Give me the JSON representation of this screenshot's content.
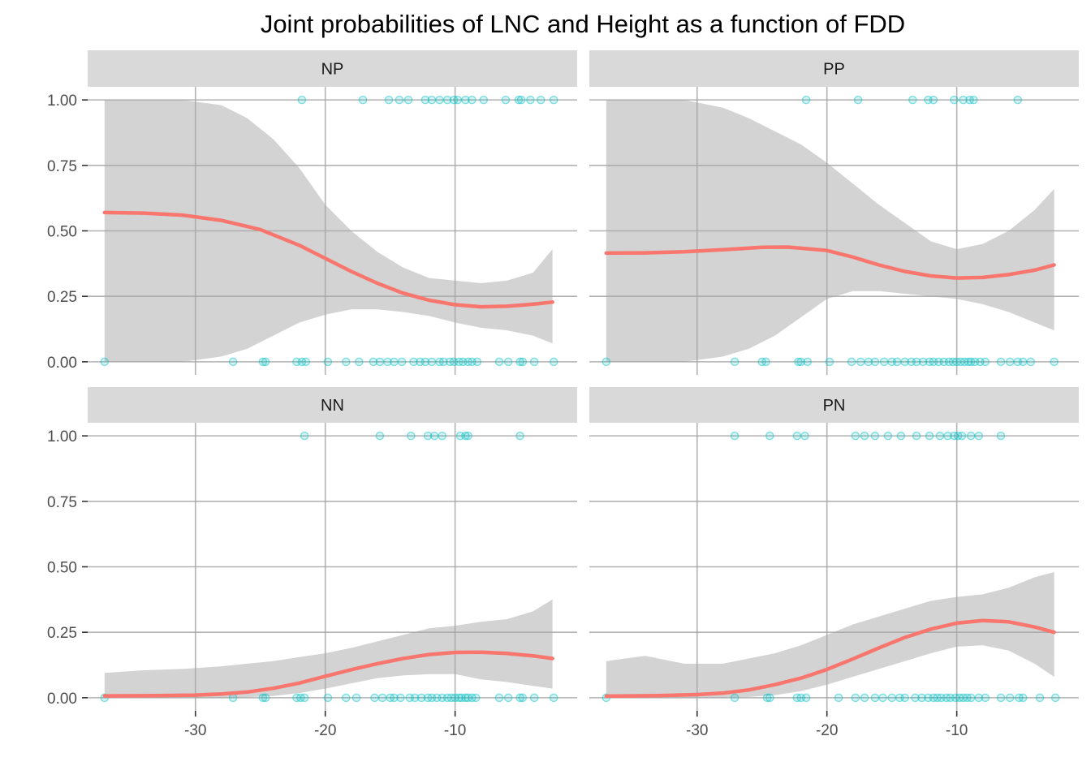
{
  "chart_data": {
    "type": "line",
    "title": "Joint probabilities of LNC and Height as a function of FDD",
    "xlabel": "",
    "ylabel": "",
    "xlim": [
      -38.3,
      -0.6
    ],
    "ylim": [
      -0.05,
      1.05
    ],
    "x_ticks": [
      -30,
      -20,
      -10
    ],
    "x_tick_labels": [
      "-30",
      "-20",
      "-10"
    ],
    "y_ticks": [
      0,
      0.25,
      0.5,
      0.75,
      1.0
    ],
    "y_tick_labels": [
      "0.00",
      "0.25",
      "0.50",
      "0.75",
      "1.00"
    ],
    "grid": true,
    "colors": {
      "line": "#F8766D",
      "ribbon": "#d3d3d3",
      "points": "#00BFC4",
      "strip": "#d9d9d9",
      "grid": "#a6a6a6"
    },
    "panels": [
      {
        "label": "NP",
        "line": {
          "x": [
            -37,
            -34,
            -31,
            -28,
            -25,
            -22,
            -20,
            -18,
            -16,
            -14,
            -12,
            -10,
            -8,
            -6,
            -4,
            -2.5
          ],
          "y": [
            0.57,
            0.568,
            0.56,
            0.54,
            0.505,
            0.445,
            0.395,
            0.345,
            0.3,
            0.262,
            0.235,
            0.218,
            0.21,
            0.212,
            0.22,
            0.228
          ]
        },
        "ribbon": {
          "x": [
            -37,
            -34,
            -31,
            -28,
            -26,
            -24,
            -22,
            -20,
            -18,
            -16,
            -14,
            -12,
            -10,
            -8,
            -6,
            -4,
            -2.5
          ],
          "upper": [
            1.0,
            1.0,
            1.0,
            0.98,
            0.93,
            0.85,
            0.74,
            0.6,
            0.5,
            0.42,
            0.36,
            0.32,
            0.31,
            0.3,
            0.31,
            0.34,
            0.43
          ],
          "lower": [
            0.0,
            0.0,
            0.0,
            0.02,
            0.05,
            0.1,
            0.15,
            0.18,
            0.2,
            0.2,
            0.19,
            0.175,
            0.15,
            0.13,
            0.12,
            0.1,
            0.07
          ]
        },
        "points_top": [
          -21.8,
          -17.1,
          -15.1,
          -14.3,
          -13.6,
          -12.3,
          -11.8,
          -11.2,
          -10.6,
          -10.1,
          -9.8,
          -9.2,
          -8.7,
          -7.8,
          -6.1,
          -5.1,
          -4.9,
          -4.2,
          -3.4,
          -2.4
        ],
        "points_bottom": [
          -37,
          -27.1,
          -24.8,
          -24.6,
          -22.2,
          -21.8,
          -21.5,
          -19.8,
          -18.4,
          -17.4,
          -16.3,
          -15.8,
          -15.2,
          -14.7,
          -14.1,
          -13.2,
          -12.7,
          -12.3,
          -11.8,
          -11.2,
          -10.9,
          -10.4,
          -10.1,
          -9.7,
          -9.4,
          -9.0,
          -8.7,
          -8.3,
          -6.6,
          -5.9,
          -5.0,
          -4.8,
          -3.9,
          -2.4
        ]
      },
      {
        "label": "PP",
        "line": {
          "x": [
            -37,
            -34,
            -31,
            -28,
            -25,
            -23,
            -20,
            -18,
            -16,
            -14,
            -12,
            -10,
            -8,
            -6,
            -4,
            -2.5
          ],
          "y": [
            0.415,
            0.416,
            0.42,
            0.428,
            0.437,
            0.438,
            0.425,
            0.4,
            0.37,
            0.345,
            0.328,
            0.32,
            0.322,
            0.333,
            0.35,
            0.37
          ]
        },
        "ribbon": {
          "x": [
            -37,
            -34,
            -31,
            -28,
            -26,
            -24,
            -22,
            -20,
            -18,
            -16,
            -14,
            -12,
            -10,
            -8,
            -6,
            -4,
            -2.5
          ],
          "upper": [
            1.0,
            1.0,
            1.0,
            0.97,
            0.93,
            0.88,
            0.83,
            0.76,
            0.68,
            0.6,
            0.53,
            0.46,
            0.43,
            0.45,
            0.5,
            0.58,
            0.66
          ],
          "lower": [
            0.0,
            0.0,
            0.0,
            0.02,
            0.05,
            0.1,
            0.17,
            0.24,
            0.27,
            0.27,
            0.26,
            0.25,
            0.24,
            0.22,
            0.19,
            0.15,
            0.12
          ]
        },
        "points_top": [
          -21.6,
          -17.6,
          -13.4,
          -12.2,
          -11.8,
          -10.2,
          -9.5,
          -9.0,
          -8.7,
          -5.3
        ],
        "points_bottom": [
          -37,
          -27.1,
          -25.0,
          -24.7,
          -22.2,
          -22.0,
          -21.5,
          -19.8,
          -18.1,
          -17.4,
          -16.8,
          -16.3,
          -15.6,
          -15.0,
          -14.6,
          -14.0,
          -13.5,
          -13.1,
          -12.6,
          -12.1,
          -11.8,
          -11.4,
          -11.0,
          -10.6,
          -10.3,
          -10.0,
          -9.7,
          -9.4,
          -9.1,
          -8.9,
          -8.6,
          -8.2,
          -7.8,
          -6.6,
          -5.9,
          -5.3,
          -4.9,
          -4.3,
          -2.5
        ]
      },
      {
        "label": "NN",
        "line": {
          "x": [
            -37,
            -33,
            -30,
            -28,
            -26,
            -24,
            -22,
            -20,
            -18,
            -16,
            -14,
            -12,
            -10,
            -8,
            -6,
            -4,
            -2.5
          ],
          "y": [
            0.007,
            0.008,
            0.01,
            0.014,
            0.022,
            0.036,
            0.056,
            0.082,
            0.107,
            0.13,
            0.15,
            0.165,
            0.173,
            0.174,
            0.169,
            0.16,
            0.15
          ]
        },
        "ribbon": {
          "x": [
            -37,
            -34,
            -31,
            -28,
            -26,
            -24,
            -22,
            -20,
            -18,
            -16,
            -14,
            -12,
            -10,
            -8,
            -6,
            -4,
            -2.5
          ],
          "upper": [
            0.095,
            0.105,
            0.11,
            0.12,
            0.13,
            0.14,
            0.155,
            0.17,
            0.19,
            0.215,
            0.24,
            0.265,
            0.275,
            0.29,
            0.3,
            0.33,
            0.375
          ],
          "lower": [
            0.0,
            0.0,
            0.0,
            0.0,
            0.002,
            0.007,
            0.018,
            0.035,
            0.055,
            0.075,
            0.085,
            0.09,
            0.09,
            0.07,
            0.06,
            0.045,
            0.035
          ]
        },
        "points_top": [
          -21.6,
          -15.8,
          -13.4,
          -12.1,
          -11.6,
          -11.0,
          -9.6,
          -9.2,
          -9.0,
          -5.0
        ],
        "points_bottom": [
          -37,
          -27.1,
          -24.8,
          -24.6,
          -22.2,
          -21.9,
          -21.6,
          -19.8,
          -18.4,
          -17.6,
          -16.2,
          -15.6,
          -15.0,
          -14.7,
          -14.2,
          -13.5,
          -13.1,
          -12.6,
          -12.1,
          -11.8,
          -11.4,
          -11.0,
          -10.6,
          -10.3,
          -10.0,
          -9.7,
          -9.5,
          -9.2,
          -9.0,
          -8.7,
          -8.4,
          -6.6,
          -5.9,
          -5.0,
          -4.8,
          -3.9,
          -2.4
        ]
      },
      {
        "label": "PN",
        "line": {
          "x": [
            -37,
            -33,
            -30,
            -28,
            -26,
            -24,
            -22,
            -20,
            -18,
            -16,
            -14,
            -12,
            -10,
            -8,
            -6,
            -4,
            -2.5
          ],
          "y": [
            0.006,
            0.008,
            0.012,
            0.018,
            0.03,
            0.05,
            0.075,
            0.108,
            0.148,
            0.19,
            0.23,
            0.262,
            0.285,
            0.295,
            0.29,
            0.27,
            0.25
          ]
        },
        "ribbon": {
          "x": [
            -37,
            -34,
            -31,
            -28,
            -26,
            -24,
            -22,
            -20,
            -18,
            -16,
            -14,
            -12,
            -10,
            -8,
            -6,
            -4,
            -2.5
          ],
          "upper": [
            0.14,
            0.16,
            0.13,
            0.13,
            0.15,
            0.17,
            0.2,
            0.24,
            0.28,
            0.31,
            0.34,
            0.37,
            0.385,
            0.395,
            0.42,
            0.46,
            0.48
          ],
          "lower": [
            0.0,
            0.0,
            0.0,
            0.0,
            0.003,
            0.01,
            0.025,
            0.05,
            0.08,
            0.11,
            0.14,
            0.17,
            0.195,
            0.2,
            0.18,
            0.13,
            0.08
          ]
        },
        "points_top": [
          -27.1,
          -24.4,
          -22.3,
          -21.7,
          -17.8,
          -17.1,
          -16.3,
          -15.3,
          -14.3,
          -13.1,
          -12.1,
          -11.3,
          -10.7,
          -10.2,
          -9.9,
          -9.6,
          -8.9,
          -8.3,
          -6.6
        ],
        "points_bottom": [
          -37,
          -27.1,
          -24.6,
          -24.4,
          -22.3,
          -22.0,
          -21.6,
          -19.1,
          -17.8,
          -17.1,
          -16.3,
          -15.7,
          -15.0,
          -14.4,
          -14.0,
          -13.2,
          -12.7,
          -12.2,
          -11.8,
          -11.5,
          -11.2,
          -10.8,
          -10.5,
          -10.1,
          -9.8,
          -9.5,
          -9.2,
          -8.9,
          -8.3,
          -7.8,
          -6.6,
          -5.9,
          -5.2,
          -4.9,
          -3.6,
          -2.4
        ]
      }
    ]
  }
}
